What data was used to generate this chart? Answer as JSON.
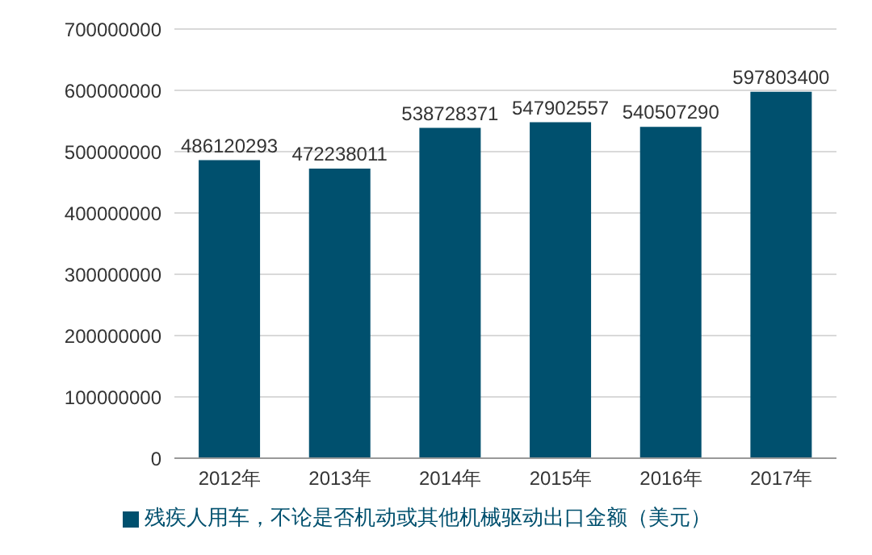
{
  "chart_data": {
    "type": "bar",
    "categories": [
      "2012年",
      "2013年",
      "2014年",
      "2015年",
      "2016年",
      "2017年"
    ],
    "series": [
      {
        "name": "残疾人用车，不论是否机动或其他机械驱动出口金额（美元）",
        "color": "#00506e",
        "values": [
          486120293,
          472238011,
          538728371,
          547902557,
          540507290,
          597803400
        ]
      }
    ],
    "ylim": [
      0,
      700000000
    ],
    "yticks": [
      0,
      100000000,
      200000000,
      300000000,
      400000000,
      500000000,
      600000000,
      700000000
    ],
    "grid": "y",
    "legend": "bottom",
    "data_labels": true
  }
}
